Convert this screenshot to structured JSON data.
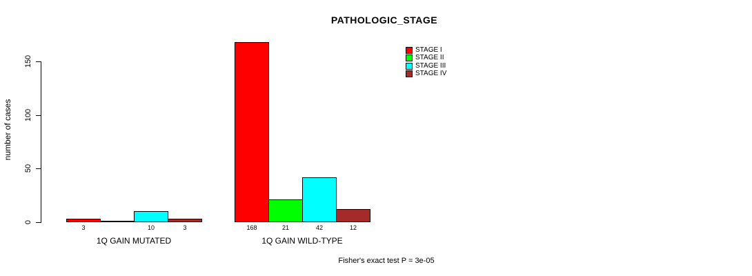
{
  "chart_data": {
    "type": "bar",
    "title": "PATHOLOGIC_STAGE",
    "xlabel": "",
    "ylabel": "number of cases",
    "ylim": [
      0,
      168
    ],
    "yticks": [
      0,
      50,
      100,
      150
    ],
    "grid": false,
    "legend_position": "top-right",
    "categories": [
      "1Q GAIN MUTATED",
      "1Q GAIN WILD-TYPE"
    ],
    "series": [
      {
        "name": "STAGE I",
        "color": "#ff0000",
        "values": [
          3,
          168
        ]
      },
      {
        "name": "STAGE II",
        "color": "#00ff00",
        "values": [
          0,
          21
        ]
      },
      {
        "name": "STAGE III",
        "color": "#00ffff",
        "values": [
          10,
          42
        ]
      },
      {
        "name": "STAGE IV",
        "color": "#a52a2a",
        "values": [
          3,
          12
        ]
      }
    ],
    "bar_labels": [
      [
        "3",
        "",
        "10",
        "3"
      ],
      [
        "168",
        "21",
        "42",
        "12"
      ]
    ],
    "annotation": "Fisher's exact test P = 3e-05"
  },
  "colors": {
    "bar_border": "#000000",
    "axis": "#000000",
    "background": "#ffffff",
    "text": "#000000"
  }
}
